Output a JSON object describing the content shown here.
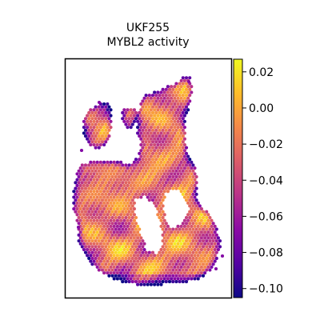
{
  "title": {
    "line1": "UKF255",
    "line2": "MYBL2 activity"
  },
  "chart_data": {
    "type": "heatmap",
    "subtype": "spatial-spot-map",
    "sample": "UKF255",
    "title": "UKF255\nMYBL2 activity",
    "colormap": "plasma",
    "color_range": [
      -0.105,
      0.027
    ],
    "colorbar": {
      "ticks": [
        0.02,
        0.0,
        -0.02,
        -0.04,
        -0.06,
        -0.08,
        -0.1
      ],
      "tick_labels": [
        "0.02",
        "0.00",
        "−0.02",
        "−0.04",
        "−0.06",
        "−0.08",
        "−0.10"
      ],
      "placement": "right"
    },
    "axes_visible": false,
    "grid": false,
    "value_distribution": "mostly between -0.06 and 0.02; dark purple (~ -0.10) spots concentrated along the lower and right tissue edges"
  },
  "colors": {
    "colormap_stops": [
      "#0d0887",
      "#5402a3",
      "#8b0aa5",
      "#b93289",
      "#db5c68",
      "#f48849",
      "#febd2a",
      "#f0f921"
    ],
    "frame": "#000000",
    "background": "#ffffff"
  }
}
